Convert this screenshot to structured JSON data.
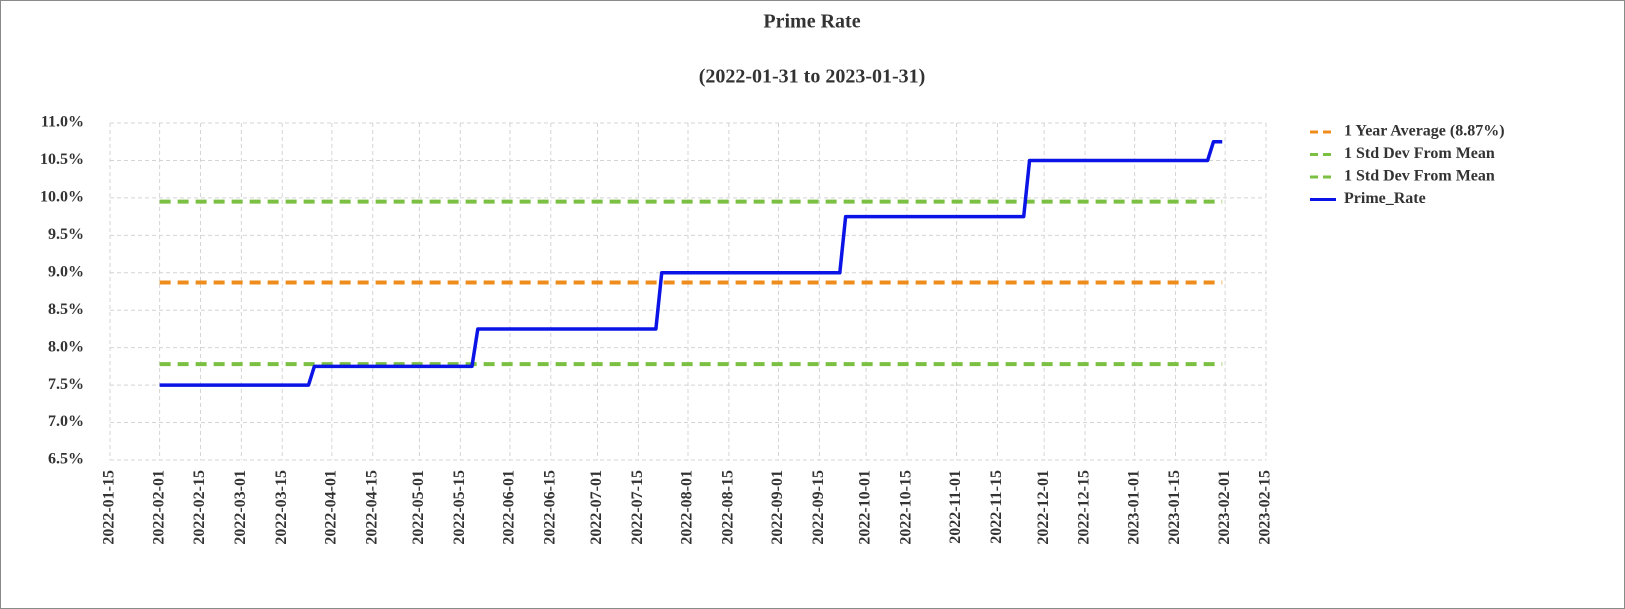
{
  "chart_data": {
    "type": "line",
    "title": "Prime Rate",
    "subtitle": "(2022-01-31 to 2023-01-31)",
    "xlim": [
      "2022-01-15",
      "2023-02-15"
    ],
    "xticks": [
      "2022-01-15",
      "2022-02-01",
      "2022-02-15",
      "2022-03-01",
      "2022-03-15",
      "2022-04-01",
      "2022-04-15",
      "2022-05-01",
      "2022-05-15",
      "2022-06-01",
      "2022-06-15",
      "2022-07-01",
      "2022-07-15",
      "2022-08-01",
      "2022-08-15",
      "2022-09-01",
      "2022-09-15",
      "2022-10-01",
      "2022-10-15",
      "2022-11-01",
      "2022-11-15",
      "2022-12-01",
      "2022-12-15",
      "2023-01-01",
      "2023-01-15",
      "2023-02-01",
      "2023-02-15"
    ],
    "ylim": [
      6.5,
      11.0
    ],
    "yticks": [
      {
        "value": 6.5,
        "label": "6.5%"
      },
      {
        "value": 7.0,
        "label": "7.0%"
      },
      {
        "value": 7.5,
        "label": "7.5%"
      },
      {
        "value": 8.0,
        "label": "8.0%"
      },
      {
        "value": 8.5,
        "label": "8.5%"
      },
      {
        "value": 9.0,
        "label": "9.0%"
      },
      {
        "value": 9.5,
        "label": "9.5%"
      },
      {
        "value": 10.0,
        "label": "10.0%"
      },
      {
        "value": 10.5,
        "label": "10.5%"
      },
      {
        "value": 11.0,
        "label": "11.0%"
      }
    ],
    "grid": true,
    "legend": "right",
    "series": [
      {
        "name": "1 Year Average (8.87%)",
        "color": "#ee8c1c",
        "linestyle": "dashed",
        "x": [
          "2022-02-01",
          "2023-01-31"
        ],
        "values": [
          8.87,
          8.87
        ]
      },
      {
        "name": "1 Std Dev From Mean",
        "color": "#7bc043",
        "linestyle": "dashed",
        "x": [
          "2022-02-01",
          "2023-01-31"
        ],
        "values": [
          9.95,
          9.95
        ]
      },
      {
        "name": "1 Std Dev From Mean",
        "color": "#7bc043",
        "linestyle": "dashed",
        "x": [
          "2022-02-01",
          "2023-01-31"
        ],
        "values": [
          7.78,
          7.78
        ]
      },
      {
        "name": "Prime_Rate",
        "color": "#0b14e6",
        "linestyle": "solid",
        "x": [
          "2022-02-01",
          "2022-03-24",
          "2022-03-26",
          "2022-05-19",
          "2022-05-21",
          "2022-07-21",
          "2022-07-23",
          "2022-09-22",
          "2022-09-24",
          "2022-11-24",
          "2022-11-26",
          "2023-01-26",
          "2023-01-28",
          "2023-01-31"
        ],
        "values": [
          7.5,
          7.5,
          7.75,
          7.75,
          8.25,
          8.25,
          9.0,
          9.0,
          9.75,
          9.75,
          10.5,
          10.5,
          10.75,
          10.75
        ]
      }
    ]
  }
}
